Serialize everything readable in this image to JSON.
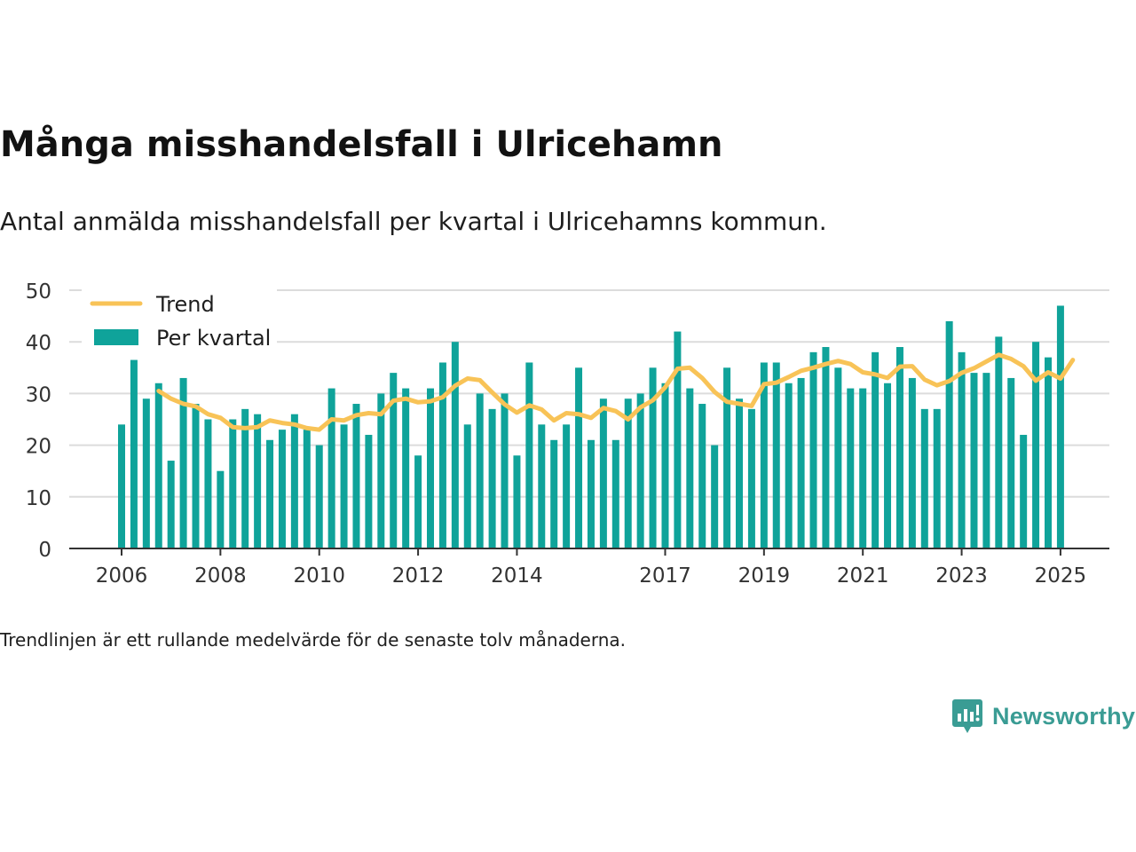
{
  "title": "Många misshandelsfall i Ulricehamn",
  "subtitle": "Antal anmälda misshandelsfall per kvartal i Ulricehamns kommun.",
  "note": "Trendlinjen är ett rullande medelvärde för de senaste tolv månaderna.",
  "brand": {
    "name": "Newsworthy",
    "icon": "newsworthy-logo-icon",
    "color": "#3a9c94"
  },
  "chart_data": {
    "type": "bar",
    "ylim": [
      0,
      50
    ],
    "yticks": [
      0,
      10,
      20,
      30,
      40,
      50
    ],
    "xticks": [
      "2006",
      "2008",
      "2010",
      "2012",
      "2014",
      "2017",
      "2019",
      "2021",
      "2023",
      "2025"
    ],
    "grid": true,
    "legend_position": "top-left",
    "colors": {
      "bars": "#0fa39a",
      "trend": "#f8c357",
      "grid": "#dcdcdc",
      "axis": "#333333"
    },
    "series": [
      {
        "name": "Per kvartal",
        "type": "bar",
        "values": [
          24,
          36.5,
          29,
          32,
          17,
          33,
          28,
          25,
          15,
          25,
          27,
          26,
          21,
          23,
          26,
          23,
          20,
          31,
          24,
          28,
          22,
          30,
          34,
          31,
          18,
          31,
          36,
          40,
          24,
          30,
          27,
          30,
          18,
          36,
          24,
          21,
          24,
          35,
          21,
          29,
          21,
          29,
          30,
          35,
          32,
          42,
          31,
          28,
          20,
          35,
          29,
          27,
          36,
          36,
          32,
          33,
          38,
          39,
          35,
          31,
          31,
          38,
          32,
          39,
          33,
          27,
          27,
          44,
          38,
          34,
          34,
          41,
          33,
          22,
          40,
          37,
          47
        ]
      },
      {
        "name": "Trend",
        "type": "line",
        "start_index": 3,
        "values": [
          30.5,
          29,
          28,
          27.5,
          26,
          25.3,
          23.5,
          23.3,
          23.5,
          24.8,
          24.3,
          24,
          23.3,
          23,
          25,
          24.8,
          25.8,
          26.2,
          26,
          28.6,
          29,
          28.3,
          28.5,
          29.3,
          31.5,
          32.9,
          32.6,
          30.2,
          27.9,
          26.3,
          27.7,
          26.9,
          24.8,
          26.2,
          26,
          25.3,
          27.2,
          26.6,
          25,
          27.3,
          28.7,
          31.2,
          34.8,
          35,
          33,
          30.3,
          28.4,
          28,
          27.6,
          31.8,
          32.1,
          33.2,
          34.4,
          35,
          35.7,
          36.3,
          35.7,
          34.1,
          33.7,
          33,
          35.2,
          35.3,
          32.7,
          31.6,
          32.4,
          34,
          34.9,
          36.2,
          37.5,
          36.7,
          35.3,
          32.5,
          34.1,
          32.9,
          36.5
        ]
      }
    ]
  }
}
